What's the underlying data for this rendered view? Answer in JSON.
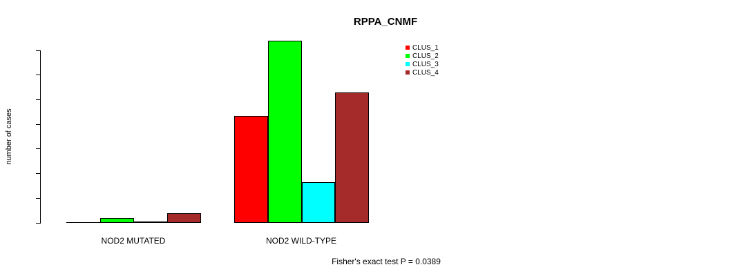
{
  "chart_data": {
    "type": "bar",
    "title": "RPPA_CNMF",
    "ylabel": "number of cases",
    "ylim": [
      0,
      140
    ],
    "yticks": [
      0,
      20,
      40,
      60,
      80,
      100,
      120,
      140
    ],
    "grid": false,
    "categories": [
      "NOD2 MUTATED",
      "NOD2 WILD-TYPE"
    ],
    "series": [
      {
        "name": "CLUS_1",
        "color": "#ff0000",
        "values": [
          0,
          87
        ],
        "value_labels": [
          "",
          "87"
        ]
      },
      {
        "name": "CLUS_2",
        "color": "#00ff00",
        "values": [
          4,
          148
        ],
        "value_labels": [
          "4",
          "148"
        ]
      },
      {
        "name": "CLUS_3",
        "color": "#00ffff",
        "values": [
          1,
          33
        ],
        "value_labels": [
          "1",
          "33"
        ]
      },
      {
        "name": "CLUS_4",
        "color": "#a52a2a",
        "values": [
          8,
          106
        ],
        "value_labels": [
          "8",
          "106"
        ]
      }
    ],
    "legend": {
      "position": "top-right"
    },
    "annotation": "Fisher's exact test P = 0.0389"
  },
  "colors": {
    "axis": "#000000",
    "text": "#000000",
    "background": "#ffffff"
  }
}
